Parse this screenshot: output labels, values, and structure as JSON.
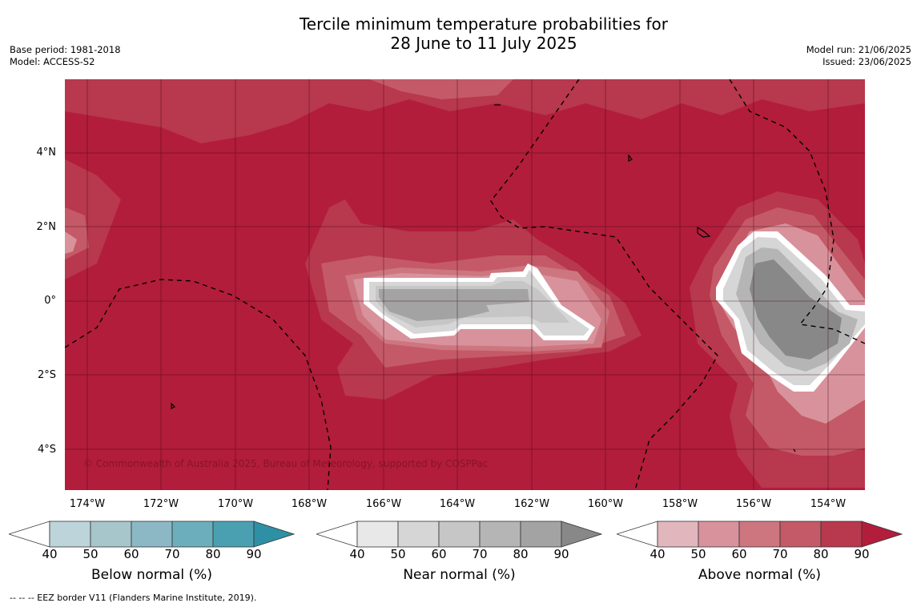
{
  "header": {
    "title_line1": "Tercile minimum temperature probabilities for",
    "title_line2": "28 June to 11 July 2025",
    "base_period": "Base period: 1981-2018",
    "model": "Model: ACCESS-S2",
    "model_run": "Model run: 21/06/2025",
    "issued": "Issued: 23/06/2025"
  },
  "map": {
    "lat_labels": [
      "4°N",
      "2°N",
      "0°",
      "2°S",
      "4°S"
    ],
    "lon_labels": [
      "174°W",
      "172°W",
      "170°W",
      "168°W",
      "166°W",
      "164°W",
      "162°W",
      "160°W",
      "158°W",
      "156°W",
      "154°W"
    ],
    "copyright": "© Commonwealth of Australia 2025, Bureau of Meteorology, supported by COSPPac",
    "background_color": "#b21d3b",
    "border_style": "dashed"
  },
  "legends": {
    "ticks": [
      "40",
      "50",
      "60",
      "70",
      "80",
      "90"
    ],
    "below": {
      "title": "Below normal (%)",
      "colors": [
        "#bdd4da",
        "#a6c6cc",
        "#8bb8c4",
        "#6daebc",
        "#4aa0b1",
        "#2e90a4"
      ]
    },
    "near": {
      "title": "Near normal (%)",
      "colors": [
        "#e8e8e8",
        "#d6d6d6",
        "#c6c6c6",
        "#b5b5b5",
        "#a3a3a3",
        "#888888"
      ]
    },
    "above": {
      "title": "Above normal (%)",
      "colors": [
        "#e2b6bd",
        "#d8929c",
        "#cd7680",
        "#c45a67",
        "#b8384d",
        "#b21d3b"
      ]
    }
  },
  "footnote": "--  --  -- EEZ border V11 (Flanders Marine Institute, 2019)."
}
